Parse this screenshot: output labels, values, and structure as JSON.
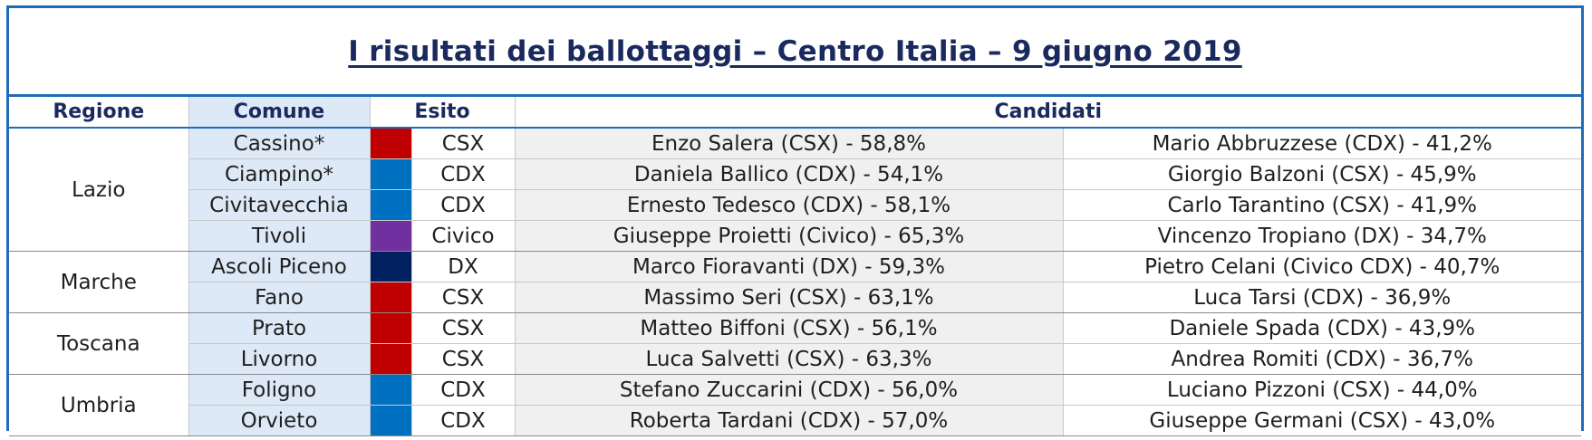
{
  "title": "I risultati dei ballottaggi – Centro Italia – 9 giugno 2019",
  "headers": {
    "regione": "Regione",
    "comune": "Comune",
    "esito": "Esito",
    "candidati": "Candidati"
  },
  "colors": {
    "CSX": "#c00000",
    "CDX": "#0070c0",
    "Civico": "#7030a0",
    "DX": "#002060",
    "border": "#1f6cb8",
    "title": "#1a2a5e"
  },
  "regions": [
    {
      "name": "Lazio",
      "rows": [
        {
          "comune": "Cassino*",
          "esito": "CSX",
          "c1": "Enzo Salera (CSX) - 58,8%",
          "c2": "Mario Abbruzzese (CDX) - 41,2%"
        },
        {
          "comune": "Ciampino*",
          "esito": "CDX",
          "c1": "Daniela Ballico (CDX) - 54,1%",
          "c2": "Giorgio Balzoni (CSX) - 45,9%"
        },
        {
          "comune": "Civitavecchia",
          "esito": "CDX",
          "c1": "Ernesto Tedesco (CDX) - 58,1%",
          "c2": "Carlo Tarantino (CSX) - 41,9%"
        },
        {
          "comune": "Tivoli",
          "esito": "Civico",
          "c1": "Giuseppe Proietti (Civico) - 65,3%",
          "c2": "Vincenzo Tropiano (DX) - 34,7%"
        }
      ]
    },
    {
      "name": "Marche",
      "rows": [
        {
          "comune": "Ascoli Piceno",
          "esito": "DX",
          "c1": "Marco Fioravanti (DX) - 59,3%",
          "c2": "Pietro Celani (Civico CDX) - 40,7%"
        },
        {
          "comune": "Fano",
          "esito": "CSX",
          "c1": "Massimo Seri (CSX) - 63,1%",
          "c2": "Luca Tarsi (CDX) - 36,9%"
        }
      ]
    },
    {
      "name": "Toscana",
      "rows": [
        {
          "comune": "Prato",
          "esito": "CSX",
          "c1": "Matteo Biffoni (CSX) - 56,1%",
          "c2": "Daniele Spada (CDX) - 43,9%"
        },
        {
          "comune": "Livorno",
          "esito": "CSX",
          "c1": "Luca Salvetti (CSX) - 63,3%",
          "c2": "Andrea Romiti (CDX) - 36,7%"
        }
      ]
    },
    {
      "name": "Umbria",
      "rows": [
        {
          "comune": "Foligno",
          "esito": "CDX",
          "c1": "Stefano Zuccarini (CDX) - 56,0%",
          "c2": "Luciano Pizzoni (CSX) - 44,0%"
        },
        {
          "comune": "Orvieto",
          "esito": "CDX",
          "c1": "Roberta Tardani (CDX) - 57,0%",
          "c2": "Giuseppe Germani (CSX) - 43,0%"
        }
      ]
    }
  ]
}
